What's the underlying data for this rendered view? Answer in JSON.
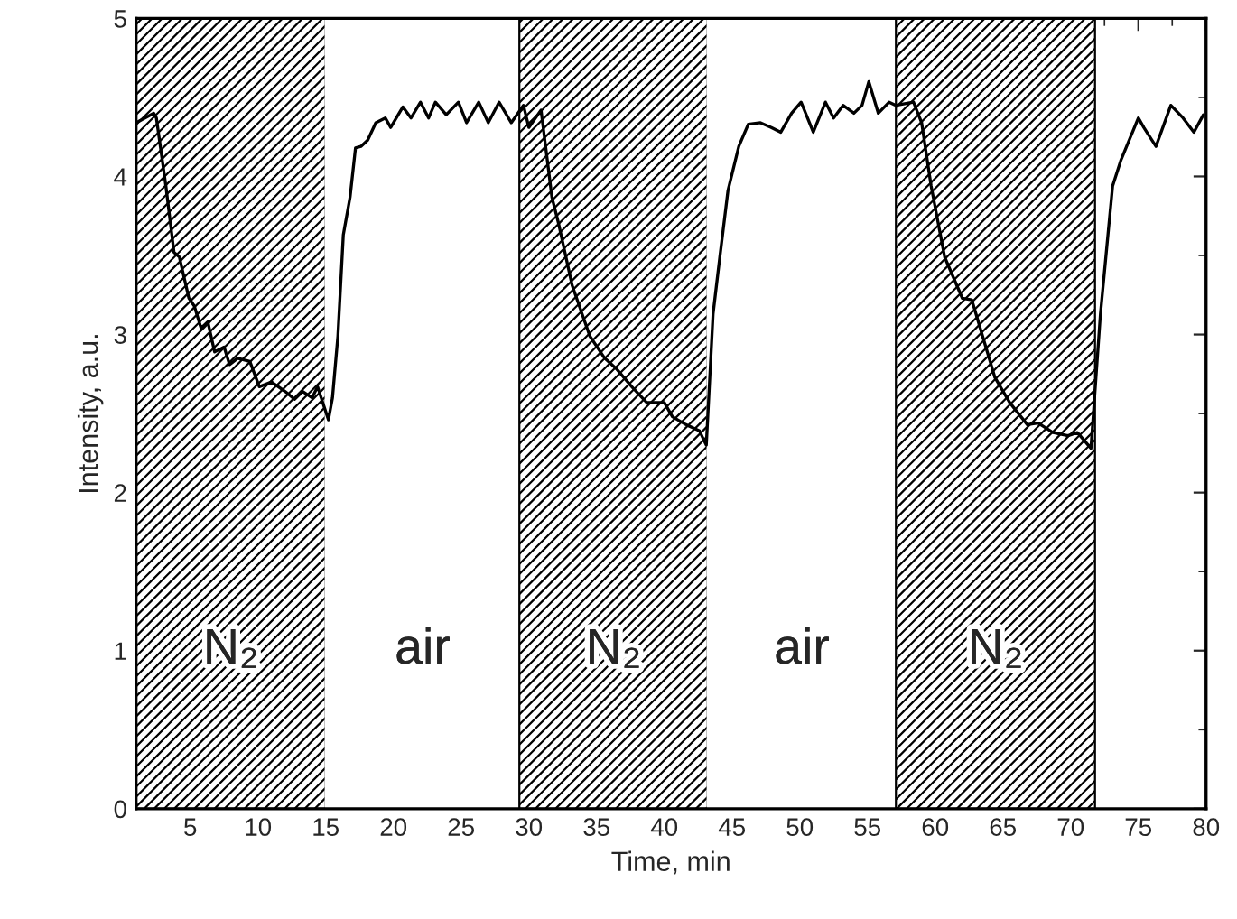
{
  "chart_data": {
    "type": "line",
    "xlabel": "Time, min",
    "ylabel": "Intensity, a.u.",
    "xlim": [
      1,
      80
    ],
    "ylim": [
      0,
      5
    ],
    "xticks": [
      5,
      10,
      15,
      20,
      25,
      30,
      35,
      40,
      45,
      50,
      55,
      60,
      65,
      70,
      75,
      80
    ],
    "yticks": [
      0,
      1,
      2,
      3,
      4,
      5
    ],
    "grid": false,
    "legend": false,
    "marker": "none",
    "line_style": "solid",
    "bands": [
      {
        "axis": "x",
        "from": 1,
        "to": 15,
        "label": "N₂",
        "color": "#000000"
      },
      {
        "axis": "x",
        "from": 15,
        "to": 29.3,
        "label": "air",
        "color": "#ffffff"
      },
      {
        "axis": "x",
        "from": 29.3,
        "to": 43.2,
        "label": "N₂",
        "color": "#000000"
      },
      {
        "axis": "x",
        "from": 43.2,
        "to": 57.1,
        "label": "air",
        "color": "#ffffff"
      },
      {
        "axis": "x",
        "from": 57.1,
        "to": 71.8,
        "label": "N₂",
        "color": "#000000"
      }
    ],
    "series": [
      {
        "color": "#000000",
        "x": [
          1,
          2.3,
          2.5,
          3.2,
          3.8,
          4.2,
          4.9,
          5.3,
          5.8,
          6.3,
          6.8,
          7.5,
          7.9,
          8.5,
          9.4,
          10.1,
          11.0,
          12.0,
          12.7,
          13.3,
          14.0,
          14.4,
          15.2,
          15.5,
          15.9,
          16.3,
          16.8,
          17.2,
          17.6,
          18.1,
          18.7,
          19.4,
          19.8,
          20.7,
          21.3,
          22.0,
          22.6,
          23.1,
          23.9,
          24.8,
          25.4,
          26.3,
          27.0,
          27.8,
          28.7,
          29.6,
          30.0,
          30.9,
          31.7,
          32.2,
          33.2,
          34.5,
          35.6,
          36.5,
          37.6,
          38.7,
          40.0,
          40.6,
          41.6,
          42.6,
          43.1,
          43.6,
          44.1,
          44.7,
          45.5,
          46.2,
          47.1,
          47.9,
          48.6,
          49.4,
          50.1,
          51.0,
          51.9,
          52.5,
          53.2,
          54.0,
          54.6,
          55.1,
          55.8,
          56.6,
          57.1,
          58.4,
          59.0,
          59.7,
          60.7,
          62.0,
          62.7,
          64.4,
          65.5,
          66.8,
          67.6,
          68.7,
          69.8,
          70.5,
          71.5,
          72.2,
          73.1,
          73.7,
          75.0,
          75.4,
          76.3,
          77.4,
          78.3,
          79.1,
          79.8
        ],
        "values": [
          4.34,
          4.4,
          4.37,
          3.94,
          3.52,
          3.49,
          3.23,
          3.18,
          3.04,
          3.08,
          2.89,
          2.92,
          2.81,
          2.85,
          2.83,
          2.67,
          2.7,
          2.64,
          2.59,
          2.64,
          2.6,
          2.67,
          2.46,
          2.6,
          2.99,
          3.63,
          3.87,
          4.18,
          4.19,
          4.23,
          4.34,
          4.37,
          4.31,
          4.44,
          4.37,
          4.47,
          4.37,
          4.47,
          4.39,
          4.47,
          4.34,
          4.47,
          4.34,
          4.47,
          4.34,
          4.45,
          4.31,
          4.42,
          3.87,
          3.7,
          3.31,
          2.99,
          2.85,
          2.78,
          2.67,
          2.57,
          2.57,
          2.48,
          2.43,
          2.39,
          2.3,
          3.13,
          3.49,
          3.91,
          4.19,
          4.33,
          4.34,
          4.31,
          4.28,
          4.4,
          4.47,
          4.28,
          4.47,
          4.37,
          4.45,
          4.4,
          4.45,
          4.6,
          4.4,
          4.47,
          4.45,
          4.47,
          4.34,
          3.94,
          3.49,
          3.23,
          3.22,
          2.73,
          2.57,
          2.43,
          2.44,
          2.38,
          2.36,
          2.38,
          2.28,
          3.13,
          3.94,
          4.1,
          4.37,
          4.31,
          4.19,
          4.45,
          4.37,
          4.28,
          4.39
        ]
      }
    ]
  }
}
